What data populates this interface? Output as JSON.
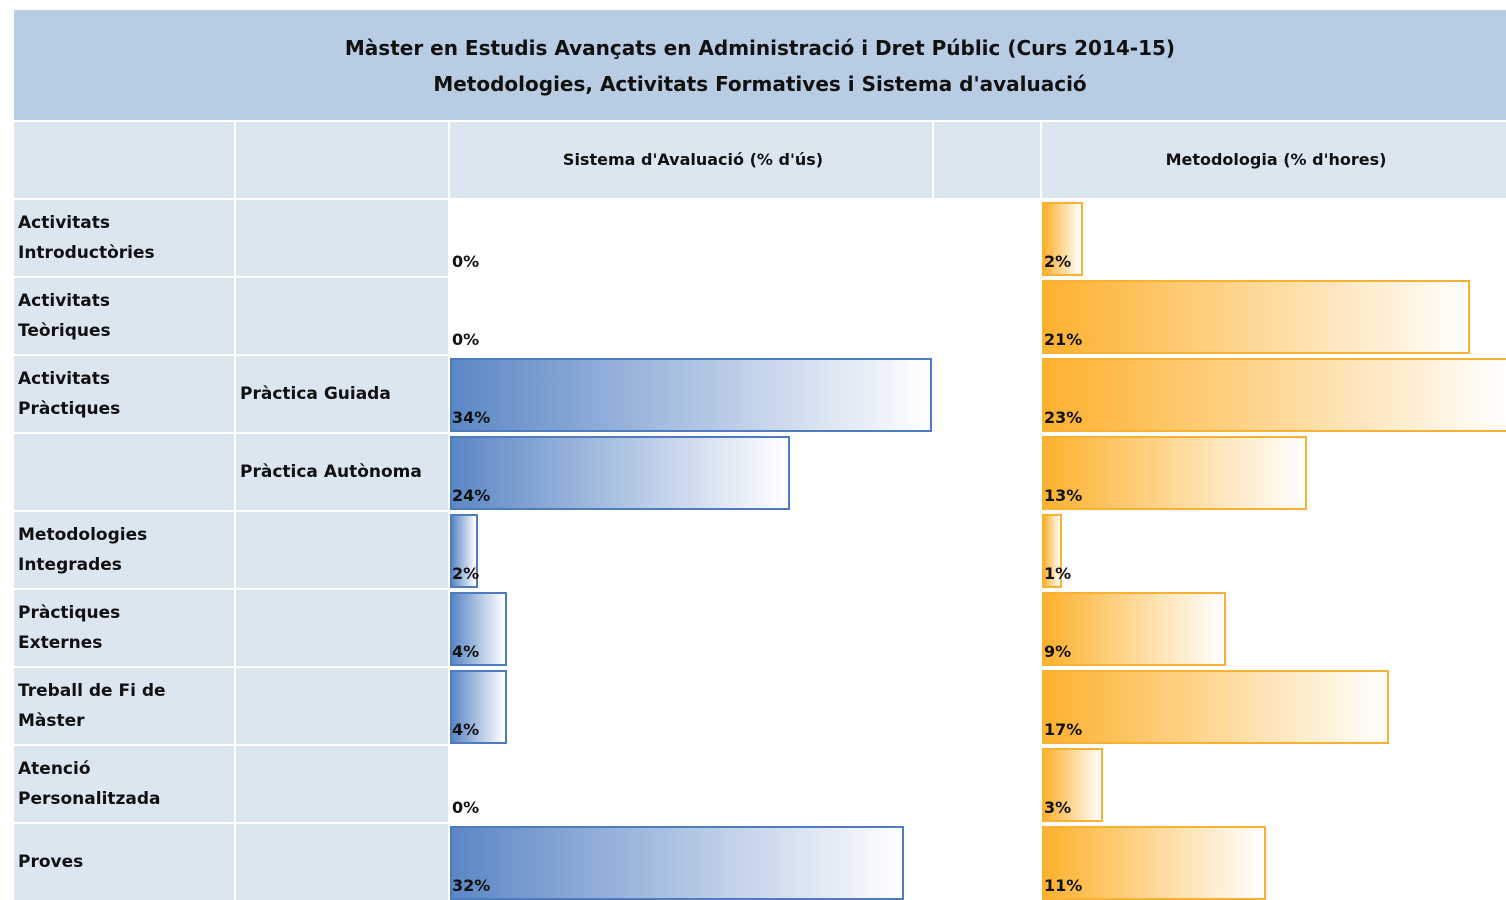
{
  "header": {
    "title": "Màster en Estudis Avançats en Administració i Dret Públic (Curs 2014-15)",
    "subtitle": "Metodologies, Activitats Formatives i Sistema d'avaluació"
  },
  "table": {
    "columns": {
      "evaluation": "Sistema d'Avaluació (% d'ús)",
      "methodology": "Metodologia (% d'hores)"
    },
    "rows": [
      {
        "label": "Activitats Introductòries",
        "evaluation": {
          "value": 0,
          "label": "0%"
        },
        "methodology": {
          "value": 2,
          "label": "2%"
        }
      },
      {
        "label": "Activitats Teòriques",
        "evaluation": {
          "value": 0,
          "label": "0%"
        },
        "methodology": {
          "value": 21,
          "label": "21%"
        }
      },
      {
        "label": "Activitats Pràctiques",
        "sublabel": "Pràctica Guiada",
        "evaluation": {
          "value": 34,
          "label": "34%"
        },
        "methodology": {
          "value": 23,
          "label": "23%"
        }
      },
      {
        "sublabel": "Pràctica Autònoma",
        "evaluation": {
          "value": 24,
          "label": "24%"
        },
        "methodology": {
          "value": 13,
          "label": "13%"
        }
      },
      {
        "label": "Metodologies Integrades",
        "evaluation": {
          "value": 2,
          "label": "2%"
        },
        "methodology": {
          "value": 1,
          "label": "1%"
        }
      },
      {
        "label": "Pràctiques Externes",
        "evaluation": {
          "value": 4,
          "label": "4%"
        },
        "methodology": {
          "value": 9,
          "label": "9%"
        }
      },
      {
        "label": "Treball de Fi de Màster",
        "evaluation": {
          "value": 4,
          "label": "4%"
        },
        "methodology": {
          "value": 17,
          "label": "17%"
        }
      },
      {
        "label": "Atenció Personalitzada",
        "evaluation": {
          "value": 0,
          "label": "0%"
        },
        "methodology": {
          "value": 3,
          "label": "3%"
        }
      },
      {
        "label": "Proves",
        "evaluation": {
          "value": 32,
          "label": "32%"
        },
        "methodology": {
          "value": 11,
          "label": "11%"
        }
      }
    ]
  }
}
